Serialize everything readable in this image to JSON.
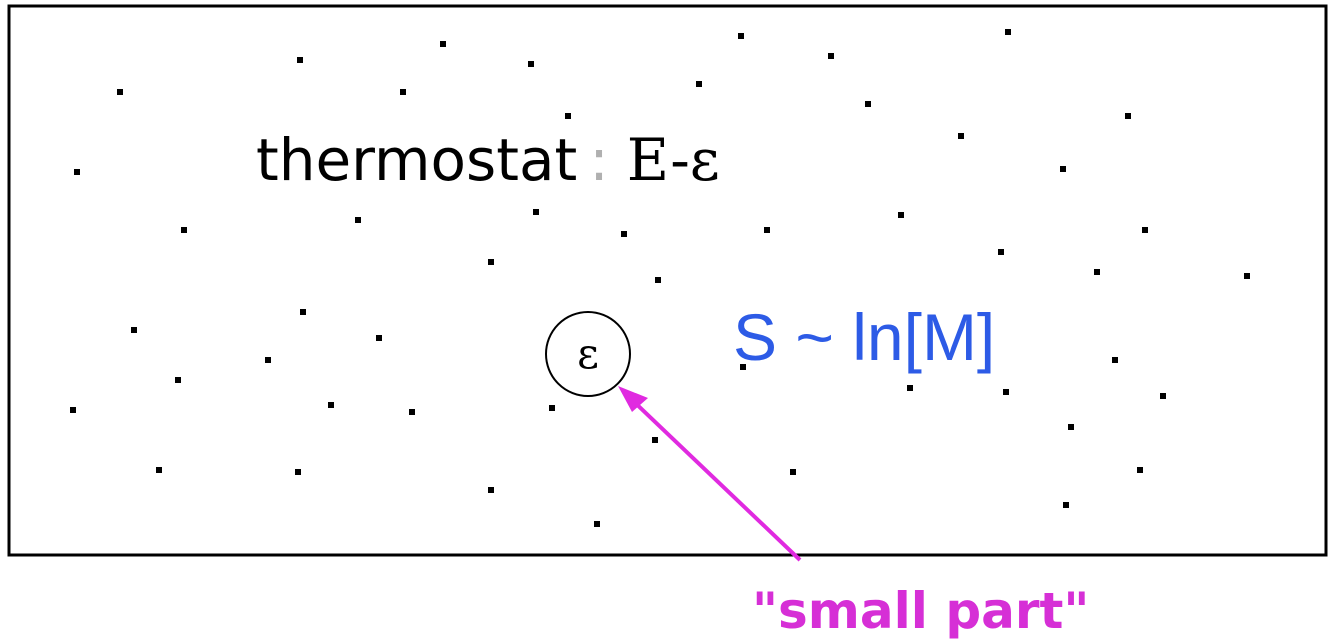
{
  "diagram": {
    "thermostat_label": "thermostat",
    "thermostat_separator": ":",
    "thermostat_energy": "E-ε",
    "entropy_formula": "S ~ ln[M]",
    "subsystem_symbol": "ε",
    "arrow_label": "\"small part\""
  },
  "colors": {
    "box_stroke": "#000000",
    "particle": "#000000",
    "formula": "#2d5be6",
    "arrow": "#e02ae0",
    "arrow_label": "#d62fd6",
    "separator": "#b0b0b0"
  }
}
